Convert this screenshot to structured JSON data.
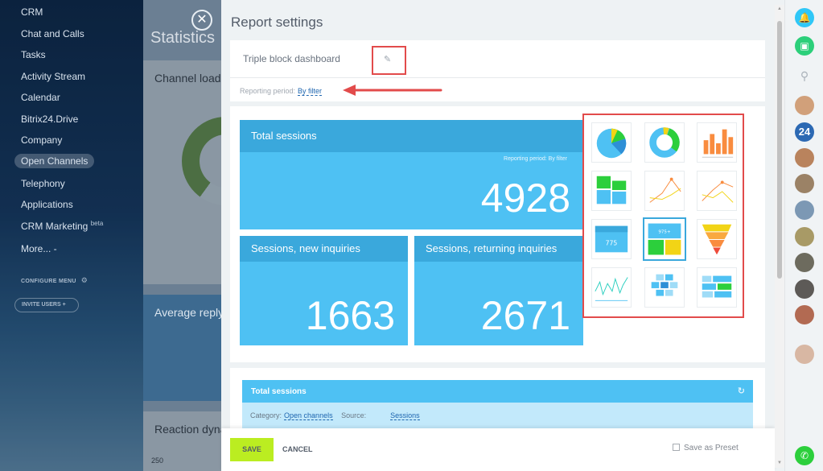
{
  "sidebar": {
    "items": [
      {
        "label": "CRM"
      },
      {
        "label": "Chat and Calls"
      },
      {
        "label": "Tasks"
      },
      {
        "label": "Activity Stream"
      },
      {
        "label": "Calendar"
      },
      {
        "label": "Bitrix24.Drive"
      },
      {
        "label": "Company"
      },
      {
        "label": "Open Channels"
      },
      {
        "label": "Telephony"
      },
      {
        "label": "Applications"
      },
      {
        "label": "CRM Marketing",
        "sup": "beta"
      },
      {
        "label": "More... -"
      }
    ],
    "configure_label": "CONFIGURE MENU",
    "invite_label": "INVITE USERS"
  },
  "background": {
    "page_title": "Statistics",
    "cards": [
      "Channel load",
      "Average reply",
      "Reaction dyna"
    ],
    "axis_label": "250"
  },
  "panel": {
    "title": "Report settings",
    "report_name": "Triple block dashboard",
    "period_label": "Reporting period:",
    "period_value": "By filter",
    "tiles": {
      "total": {
        "title": "Total sessions",
        "period": "Reporting period: By filter",
        "value": "4928"
      },
      "new": {
        "title": "Sessions, new inquiries",
        "value": "1663"
      },
      "returning": {
        "title": "Sessions, returning inquiries",
        "value": "2671"
      }
    },
    "widgets": [
      {
        "name": "pie-chart"
      },
      {
        "name": "donut-chart"
      },
      {
        "name": "bar-chart"
      },
      {
        "name": "stacked-bar-chart"
      },
      {
        "name": "line-chart"
      },
      {
        "name": "multi-line-chart"
      },
      {
        "name": "number-block"
      },
      {
        "name": "triple-block",
        "selected": true
      },
      {
        "name": "funnel-chart"
      },
      {
        "name": "linear-chart"
      },
      {
        "name": "heatmap-grid"
      },
      {
        "name": "comparison-chart"
      }
    ],
    "settings": {
      "widget_title": "Total sessions",
      "category_label": "Category:",
      "category_value": "Open channels",
      "source_label": "Source:",
      "source_value": "Sessions"
    },
    "footer": {
      "save_label": "SAVE",
      "cancel_label": "CANCEL",
      "preset_label": "Save as Preset"
    }
  },
  "rail": {
    "counter": "24"
  },
  "colors": {
    "accent": "#4ec1f3",
    "accent_dark": "#3aa8dc",
    "save_green": "#bbed21",
    "highlight_red": "#e24b4b"
  }
}
